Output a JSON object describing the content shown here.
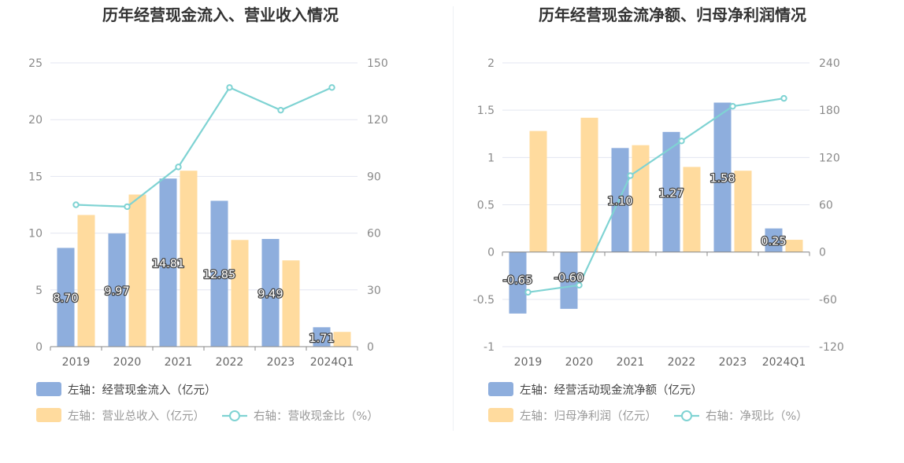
{
  "colors": {
    "left_bar": "#8eaedd",
    "right_bar": "#ffdb9e",
    "line": "#7fd3d3",
    "grid": "#e3e6f0",
    "axis": "#8a8a8a"
  },
  "chart_data": [
    {
      "type": "bar+line",
      "title": "历年经营现金流入、营业收入情况",
      "categories": [
        "2019",
        "2020",
        "2021",
        "2022",
        "2023",
        "2024Q1"
      ],
      "left_axis": {
        "ticks": [
          "0",
          "5",
          "10",
          "15",
          "20",
          "25"
        ],
        "ylim": [
          0,
          25
        ]
      },
      "right_axis": {
        "ticks": [
          "0",
          "30",
          "60",
          "90",
          "120",
          "150"
        ],
        "ylim": [
          0,
          150
        ]
      },
      "series": [
        {
          "name": "左轴：经营现金流入（亿元）",
          "axis": "left",
          "kind": "bar",
          "values": [
            8.7,
            9.97,
            14.81,
            12.85,
            9.49,
            1.71
          ],
          "labels": [
            "8.70",
            "9.97",
            "14.81",
            "12.85",
            "9.49",
            "1.71"
          ]
        },
        {
          "name": "左轴：营业总收入（亿元）",
          "axis": "left",
          "kind": "bar",
          "values": [
            11.6,
            13.4,
            15.5,
            9.4,
            7.6,
            1.3
          ]
        },
        {
          "name": "右轴：营收现金比（%）",
          "axis": "right",
          "kind": "line",
          "values": [
            75,
            74,
            95,
            137,
            125,
            137
          ]
        }
      ],
      "legend": [
        "左轴：经营现金流入（亿元）",
        "左轴：营业总收入（亿元）",
        "右轴：营收现金比（%）"
      ]
    },
    {
      "type": "bar+line",
      "title": "历年经营现金流净额、归母净利润情况",
      "categories": [
        "2019",
        "2020",
        "2021",
        "2022",
        "2023",
        "2024Q1"
      ],
      "left_axis": {
        "ticks": [
          "-1",
          "-0.5",
          "0",
          "0.5",
          "1",
          "1.5",
          "2"
        ],
        "ylim": [
          -1,
          2
        ]
      },
      "right_axis": {
        "ticks": [
          "-120",
          "-60",
          "0",
          "60",
          "120",
          "180",
          "240"
        ],
        "ylim": [
          -120,
          240
        ]
      },
      "series": [
        {
          "name": "左轴：经营活动现金流净额（亿元）",
          "axis": "left",
          "kind": "bar",
          "values": [
            -0.65,
            -0.6,
            1.1,
            1.27,
            1.58,
            0.25
          ],
          "labels": [
            "-0.65",
            "-0.60",
            "1.10",
            "1.27",
            "1.58",
            "0.25"
          ]
        },
        {
          "name": "左轴：归母净利润（亿元）",
          "axis": "left",
          "kind": "bar",
          "values": [
            1.28,
            1.42,
            1.13,
            0.9,
            0.86,
            0.13
          ]
        },
        {
          "name": "右轴：净现比（%）",
          "axis": "right",
          "kind": "line",
          "values": [
            -51,
            -42,
            97,
            141,
            185,
            195
          ]
        }
      ],
      "legend": [
        "左轴：经营活动现金流净额（亿元）",
        "左轴：归母净利润（亿元）",
        "右轴：净现比（%）"
      ]
    }
  ]
}
